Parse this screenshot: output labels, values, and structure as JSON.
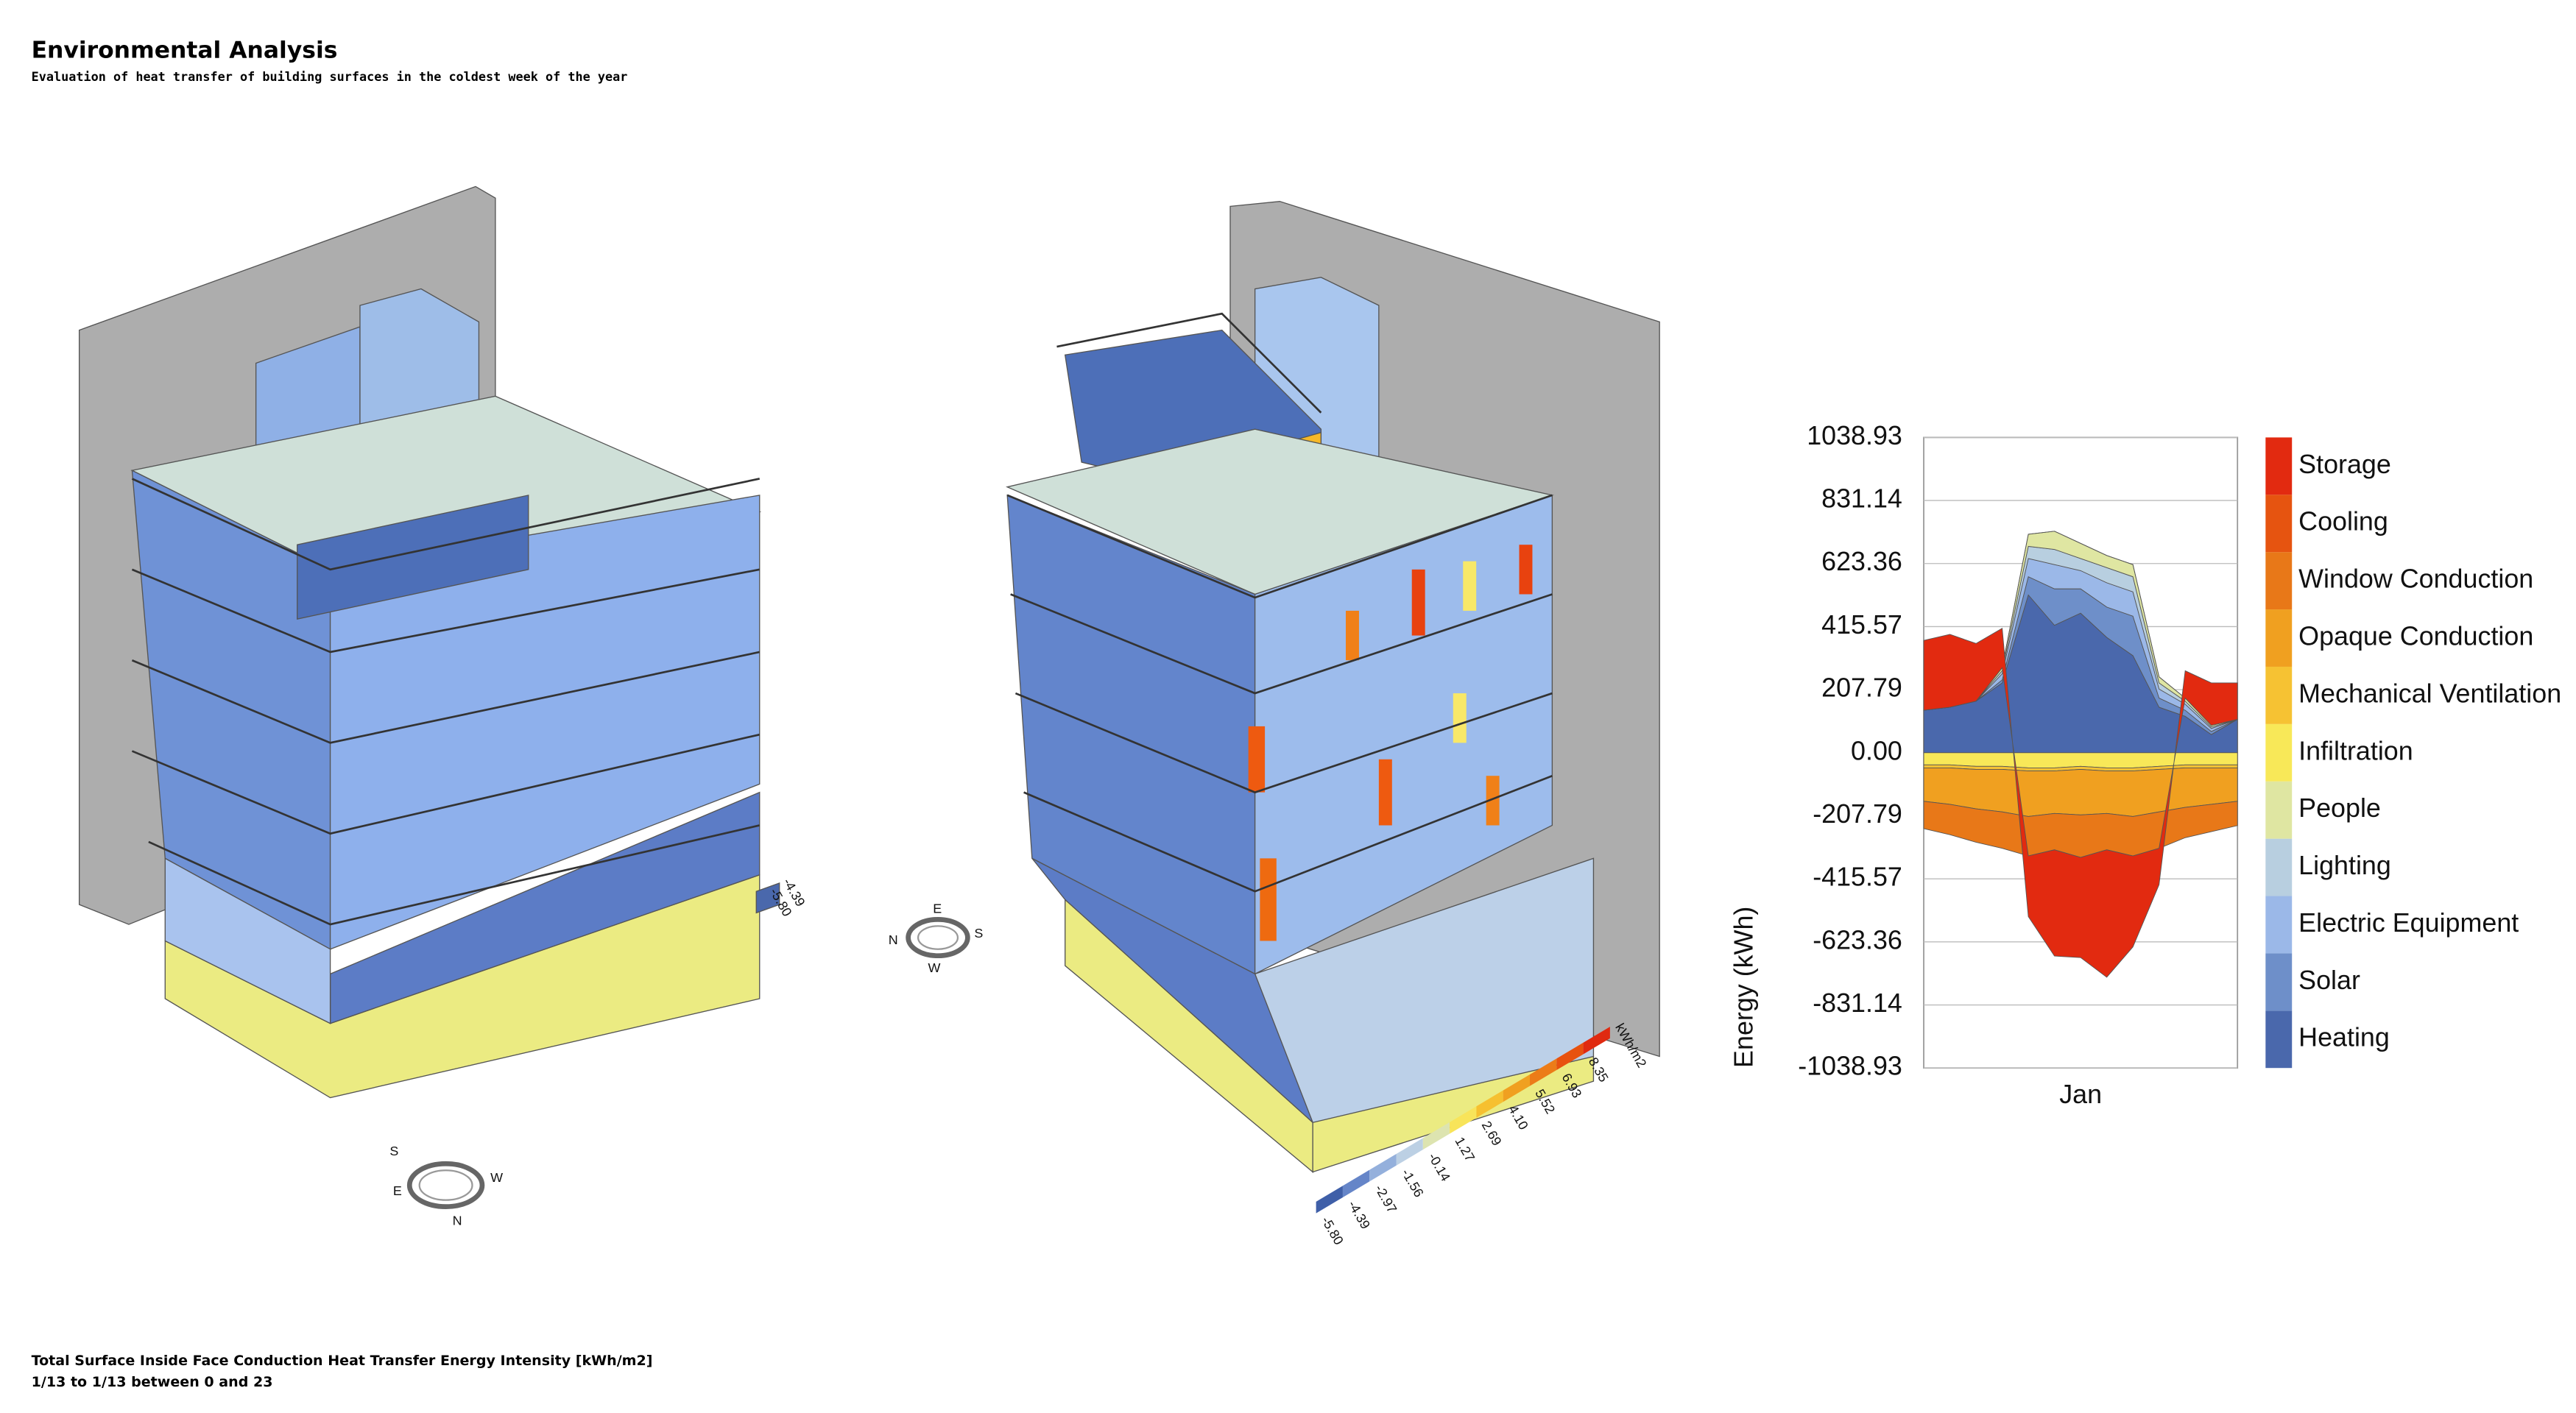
{
  "header": {
    "title": "Environmental Analysis",
    "subtitle": "Evaluation of heat transfer of building surfaces in the coldest week of the year"
  },
  "footer": {
    "line1": "Total Surface Inside Face Conduction Heat Transfer Energy Intensity [kWh/m2]",
    "line2": "1/13 to 1/13 between 0 and 23"
  },
  "left_key": [
    "-4.39",
    "-5.80"
  ],
  "surface_legend": {
    "unit": "kWh/m2",
    "labels": [
      "-5.80",
      "-4.39",
      "-2.97",
      "-1.56",
      "-0.14",
      "1.27",
      "2.69",
      "4.10",
      "5.52",
      "6.93",
      "8.35"
    ]
  },
  "compass_left": {
    "top": "S",
    "right": "W",
    "bottom": "N",
    "left": "E"
  },
  "compass_right": {
    "top": "E",
    "right": "S",
    "bottom": "W",
    "left": "N"
  },
  "chart_data": {
    "type": "stacked_area",
    "y_label": "Energy (kWh)",
    "categories": [
      null,
      null,
      null,
      null,
      null,
      null,
      "Jan",
      null,
      null,
      null,
      null,
      null,
      null
    ],
    "ylim": [
      -1038.93,
      1038.93
    ],
    "yticks": [
      -1038.93,
      -831.14,
      -623.36,
      -415.57,
      -207.79,
      {
        "value": 0,
        "label": "0.00"
      },
      207.79,
      415.57,
      623.36,
      831.14,
      1038.93
    ],
    "grid": true,
    "series": [
      {
        "name": "Heating",
        "color": "#4a68ac",
        "values": [
          140,
          150,
          170,
          230,
          520,
          420,
          460,
          380,
          320,
          150,
          120,
          60,
          110
        ]
      },
      {
        "name": "Solar",
        "color": "#6e8fc9",
        "values": [
          0,
          0,
          0,
          10,
          60,
          120,
          80,
          100,
          130,
          30,
          20,
          10,
          0
        ]
      },
      {
        "name": "Electric Equipment",
        "color": "#9bb8e8",
        "values": [
          0,
          0,
          0,
          20,
          60,
          80,
          60,
          80,
          80,
          30,
          20,
          10,
          0
        ]
      },
      {
        "name": "Lighting",
        "color": "#b8cfe0",
        "values": [
          0,
          0,
          0,
          10,
          40,
          50,
          40,
          50,
          50,
          20,
          10,
          5,
          0
        ]
      },
      {
        "name": "People",
        "color": "#dfe6a2",
        "values": [
          0,
          0,
          0,
          10,
          40,
          60,
          50,
          40,
          40,
          20,
          10,
          5,
          0
        ]
      },
      {
        "name": "Infiltration",
        "color": "#f8e858",
        "values": [
          -40,
          -40,
          -45,
          -45,
          -50,
          -50,
          -45,
          -50,
          -50,
          -45,
          -40,
          -40,
          -40
        ]
      },
      {
        "name": "Mechanical Ventilation",
        "color": "#f6c233",
        "values": [
          -10,
          -10,
          -10,
          -10,
          -10,
          -10,
          -10,
          -10,
          -10,
          -10,
          -10,
          -10,
          -10
        ]
      },
      {
        "name": "Opaque Conduction",
        "color": "#f0a020",
        "values": [
          -110,
          -120,
          -130,
          -140,
          -150,
          -140,
          -150,
          -140,
          -150,
          -140,
          -130,
          -120,
          -110
        ]
      },
      {
        "name": "Window Conduction",
        "color": "#e87818",
        "values": [
          -90,
          -100,
          -110,
          -120,
          -130,
          -120,
          -140,
          -120,
          -130,
          -120,
          -100,
          -90,
          -80
        ]
      },
      {
        "name": "Cooling",
        "color": "#e65410",
        "values": [
          0,
          0,
          0,
          0,
          0,
          0,
          0,
          0,
          0,
          0,
          0,
          0,
          0
        ]
      },
      {
        "name": "Storage",
        "color": "#e22a10",
        "values": [
          230,
          240,
          190,
          130,
          -200,
          -350,
          -330,
          -420,
          -300,
          -120,
          90,
          140,
          120
        ]
      }
    ]
  }
}
